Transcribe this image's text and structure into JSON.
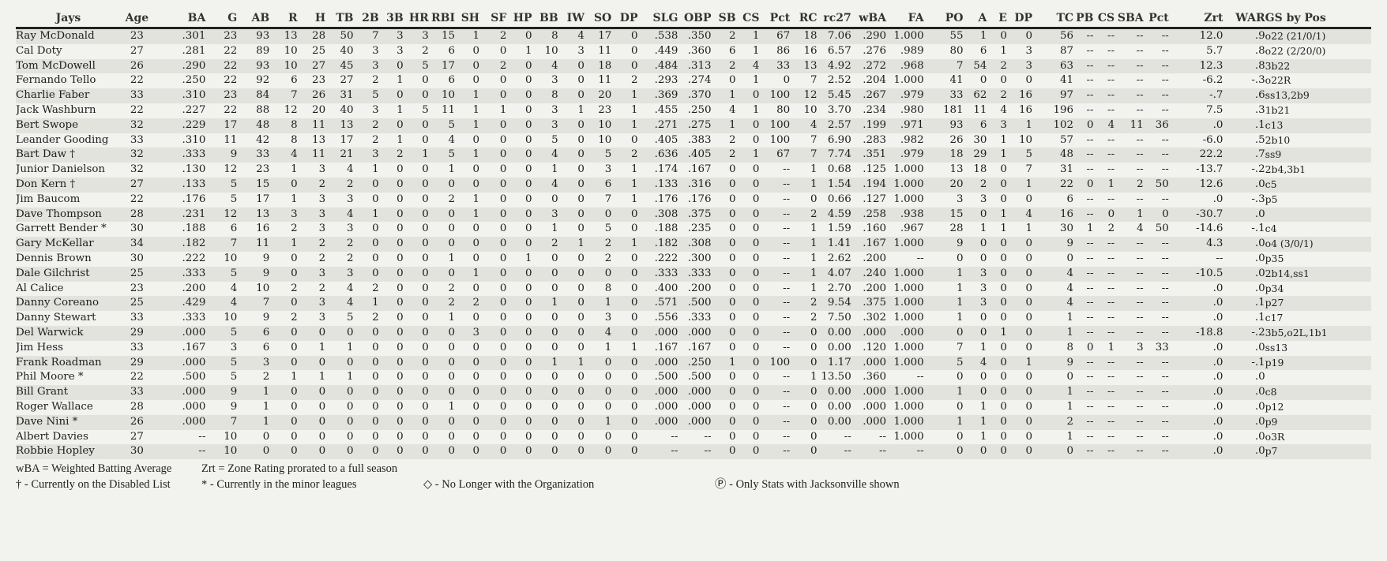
{
  "table": {
    "team_label": "Jays",
    "columns": [
      "Jays",
      "Age",
      "BA",
      "G",
      "AB",
      "R",
      "H",
      "TB",
      "2B",
      "3B",
      "HR",
      "RBI",
      "SH",
      "SF",
      "HP",
      "BB",
      "IW",
      "SO",
      "DP",
      "SLG",
      "OBP",
      "SB",
      "CS",
      "Pct",
      "RC",
      "rc27",
      "wBA",
      "FA",
      "PO",
      "A",
      "E",
      "DP",
      "TC",
      "PB",
      "CS",
      "SBA",
      "Pct",
      "Zrt",
      "WAR",
      "GS by Pos"
    ],
    "rows": [
      [
        "Ray McDonald",
        "23",
        ".301",
        "23",
        "93",
        "13",
        "28",
        "50",
        "7",
        "3",
        "3",
        "15",
        "1",
        "2",
        "0",
        "8",
        "4",
        "17",
        "0",
        ".538",
        ".350",
        "2",
        "1",
        "67",
        "18",
        "7.06",
        ".290",
        "1.000",
        "55",
        "1",
        "0",
        "0",
        "56",
        "--",
        "--",
        "--",
        "--",
        "12.0",
        ".9",
        "o22 (21/0/1)"
      ],
      [
        "Cal Doty",
        "27",
        ".281",
        "22",
        "89",
        "10",
        "25",
        "40",
        "3",
        "3",
        "2",
        "6",
        "0",
        "0",
        "1",
        "10",
        "3",
        "11",
        "0",
        ".449",
        ".360",
        "6",
        "1",
        "86",
        "16",
        "6.57",
        ".276",
        ".989",
        "80",
        "6",
        "1",
        "3",
        "87",
        "--",
        "--",
        "--",
        "--",
        "5.7",
        ".8",
        "o22 (2/20/0)"
      ],
      [
        "Tom McDowell",
        "26",
        ".290",
        "22",
        "93",
        "10",
        "27",
        "45",
        "3",
        "0",
        "5",
        "17",
        "0",
        "2",
        "0",
        "4",
        "0",
        "18",
        "0",
        ".484",
        ".313",
        "2",
        "4",
        "33",
        "13",
        "4.92",
        ".272",
        ".968",
        "7",
        "54",
        "2",
        "3",
        "63",
        "--",
        "--",
        "--",
        "--",
        "12.3",
        ".8",
        "3b22"
      ],
      [
        "Fernando Tello",
        "22",
        ".250",
        "22",
        "92",
        "6",
        "23",
        "27",
        "2",
        "1",
        "0",
        "6",
        "0",
        "0",
        "0",
        "3",
        "0",
        "11",
        "2",
        ".293",
        ".274",
        "0",
        "1",
        "0",
        "7",
        "2.52",
        ".204",
        "1.000",
        "41",
        "0",
        "0",
        "0",
        "41",
        "--",
        "--",
        "--",
        "--",
        "-6.2",
        "-.3",
        "o22R"
      ],
      [
        "Charlie Faber",
        "33",
        ".310",
        "23",
        "84",
        "7",
        "26",
        "31",
        "5",
        "0",
        "0",
        "10",
        "1",
        "0",
        "0",
        "8",
        "0",
        "20",
        "1",
        ".369",
        ".370",
        "1",
        "0",
        "100",
        "12",
        "5.45",
        ".267",
        ".979",
        "33",
        "62",
        "2",
        "16",
        "97",
        "--",
        "--",
        "--",
        "--",
        "-.7",
        ".6",
        "ss13,2b9"
      ],
      [
        "Jack Washburn",
        "22",
        ".227",
        "22",
        "88",
        "12",
        "20",
        "40",
        "3",
        "1",
        "5",
        "11",
        "1",
        "1",
        "0",
        "3",
        "1",
        "23",
        "1",
        ".455",
        ".250",
        "4",
        "1",
        "80",
        "10",
        "3.70",
        ".234",
        ".980",
        "181",
        "11",
        "4",
        "16",
        "196",
        "--",
        "--",
        "--",
        "--",
        "7.5",
        ".3",
        "1b21"
      ],
      [
        "Bert Swope",
        "32",
        ".229",
        "17",
        "48",
        "8",
        "11",
        "13",
        "2",
        "0",
        "0",
        "5",
        "1",
        "0",
        "0",
        "3",
        "0",
        "10",
        "1",
        ".271",
        ".275",
        "1",
        "0",
        "100",
        "4",
        "2.57",
        ".199",
        ".971",
        "93",
        "6",
        "3",
        "1",
        "102",
        "0",
        "4",
        "11",
        "36",
        ".0",
        ".1",
        "c13"
      ],
      [
        "Leander Gooding",
        "33",
        ".310",
        "11",
        "42",
        "8",
        "13",
        "17",
        "2",
        "1",
        "0",
        "4",
        "0",
        "0",
        "0",
        "5",
        "0",
        "10",
        "0",
        ".405",
        ".383",
        "2",
        "0",
        "100",
        "7",
        "6.90",
        ".283",
        ".982",
        "26",
        "30",
        "1",
        "10",
        "57",
        "--",
        "--",
        "--",
        "--",
        "-6.0",
        ".5",
        "2b10"
      ],
      [
        "Bart Daw †",
        "32",
        ".333",
        "9",
        "33",
        "4",
        "11",
        "21",
        "3",
        "2",
        "1",
        "5",
        "1",
        "0",
        "0",
        "4",
        "0",
        "5",
        "2",
        ".636",
        ".405",
        "2",
        "1",
        "67",
        "7",
        "7.74",
        ".351",
        ".979",
        "18",
        "29",
        "1",
        "5",
        "48",
        "--",
        "--",
        "--",
        "--",
        "22.2",
        ".7",
        "ss9"
      ],
      [
        "Junior Danielson",
        "32",
        ".130",
        "12",
        "23",
        "1",
        "3",
        "4",
        "1",
        "0",
        "0",
        "1",
        "0",
        "0",
        "0",
        "1",
        "0",
        "3",
        "1",
        ".174",
        ".167",
        "0",
        "0",
        "--",
        "1",
        "0.68",
        ".125",
        "1.000",
        "13",
        "18",
        "0",
        "7",
        "31",
        "--",
        "--",
        "--",
        "--",
        "-13.7",
        "-.2",
        "2b4,3b1"
      ],
      [
        "Don Kern †",
        "27",
        ".133",
        "5",
        "15",
        "0",
        "2",
        "2",
        "0",
        "0",
        "0",
        "0",
        "0",
        "0",
        "0",
        "4",
        "0",
        "6",
        "1",
        ".133",
        ".316",
        "0",
        "0",
        "--",
        "1",
        "1.54",
        ".194",
        "1.000",
        "20",
        "2",
        "0",
        "1",
        "22",
        "0",
        "1",
        "2",
        "50",
        "12.6",
        ".0",
        "c5"
      ],
      [
        "Jim Baucom",
        "22",
        ".176",
        "5",
        "17",
        "1",
        "3",
        "3",
        "0",
        "0",
        "0",
        "2",
        "1",
        "0",
        "0",
        "0",
        "0",
        "7",
        "1",
        ".176",
        ".176",
        "0",
        "0",
        "--",
        "0",
        "0.66",
        ".127",
        "1.000",
        "3",
        "3",
        "0",
        "0",
        "6",
        "--",
        "--",
        "--",
        "--",
        ".0",
        "-.3",
        "p5"
      ],
      [
        "Dave Thompson",
        "28",
        ".231",
        "12",
        "13",
        "3",
        "3",
        "4",
        "1",
        "0",
        "0",
        "0",
        "1",
        "0",
        "0",
        "3",
        "0",
        "0",
        "0",
        ".308",
        ".375",
        "0",
        "0",
        "--",
        "2",
        "4.59",
        ".258",
        ".938",
        "15",
        "0",
        "1",
        "4",
        "16",
        "--",
        "0",
        "1",
        "0",
        "-30.7",
        ".0",
        ""
      ],
      [
        "Garrett Bender *",
        "30",
        ".188",
        "6",
        "16",
        "2",
        "3",
        "3",
        "0",
        "0",
        "0",
        "0",
        "0",
        "0",
        "0",
        "1",
        "0",
        "5",
        "0",
        ".188",
        ".235",
        "0",
        "0",
        "--",
        "1",
        "1.59",
        ".160",
        ".967",
        "28",
        "1",
        "1",
        "1",
        "30",
        "1",
        "2",
        "4",
        "50",
        "-14.6",
        "-.1",
        "c4"
      ],
      [
        "Gary McKellar",
        "34",
        ".182",
        "7",
        "11",
        "1",
        "2",
        "2",
        "0",
        "0",
        "0",
        "0",
        "0",
        "0",
        "0",
        "2",
        "1",
        "2",
        "1",
        ".182",
        ".308",
        "0",
        "0",
        "--",
        "1",
        "1.41",
        ".167",
        "1.000",
        "9",
        "0",
        "0",
        "0",
        "9",
        "--",
        "--",
        "--",
        "--",
        "4.3",
        ".0",
        "o4 (3/0/1)"
      ],
      [
        "Dennis Brown",
        "30",
        ".222",
        "10",
        "9",
        "0",
        "2",
        "2",
        "0",
        "0",
        "0",
        "1",
        "0",
        "0",
        "1",
        "0",
        "0",
        "2",
        "0",
        ".222",
        ".300",
        "0",
        "0",
        "--",
        "1",
        "2.62",
        ".200",
        "--",
        "0",
        "0",
        "0",
        "0",
        "0",
        "--",
        "--",
        "--",
        "--",
        "--",
        ".0",
        "p35"
      ],
      [
        "Dale Gilchrist",
        "25",
        ".333",
        "5",
        "9",
        "0",
        "3",
        "3",
        "0",
        "0",
        "0",
        "0",
        "1",
        "0",
        "0",
        "0",
        "0",
        "0",
        "0",
        ".333",
        ".333",
        "0",
        "0",
        "--",
        "1",
        "4.07",
        ".240",
        "1.000",
        "1",
        "3",
        "0",
        "0",
        "4",
        "--",
        "--",
        "--",
        "--",
        "-10.5",
        ".0",
        "2b14,ss1"
      ],
      [
        "Al Calice",
        "23",
        ".200",
        "4",
        "10",
        "2",
        "2",
        "4",
        "2",
        "0",
        "0",
        "2",
        "0",
        "0",
        "0",
        "0",
        "0",
        "8",
        "0",
        ".400",
        ".200",
        "0",
        "0",
        "--",
        "1",
        "2.70",
        ".200",
        "1.000",
        "1",
        "3",
        "0",
        "0",
        "4",
        "--",
        "--",
        "--",
        "--",
        ".0",
        ".0",
        "p34"
      ],
      [
        "Danny Coreano",
        "25",
        ".429",
        "4",
        "7",
        "0",
        "3",
        "4",
        "1",
        "0",
        "0",
        "2",
        "2",
        "0",
        "0",
        "1",
        "0",
        "1",
        "0",
        ".571",
        ".500",
        "0",
        "0",
        "--",
        "2",
        "9.54",
        ".375",
        "1.000",
        "1",
        "3",
        "0",
        "0",
        "4",
        "--",
        "--",
        "--",
        "--",
        ".0",
        ".1",
        "p27"
      ],
      [
        "Danny Stewart",
        "33",
        ".333",
        "10",
        "9",
        "2",
        "3",
        "5",
        "2",
        "0",
        "0",
        "1",
        "0",
        "0",
        "0",
        "0",
        "0",
        "3",
        "0",
        ".556",
        ".333",
        "0",
        "0",
        "--",
        "2",
        "7.50",
        ".302",
        "1.000",
        "1",
        "0",
        "0",
        "0",
        "1",
        "--",
        "--",
        "--",
        "--",
        ".0",
        ".1",
        "c17"
      ],
      [
        "Del Warwick",
        "29",
        ".000",
        "5",
        "6",
        "0",
        "0",
        "0",
        "0",
        "0",
        "0",
        "0",
        "3",
        "0",
        "0",
        "0",
        "0",
        "4",
        "0",
        ".000",
        ".000",
        "0",
        "0",
        "--",
        "0",
        "0.00",
        ".000",
        ".000",
        "0",
        "0",
        "1",
        "0",
        "1",
        "--",
        "--",
        "--",
        "--",
        "-18.8",
        "-.2",
        "3b5,o2L,1b1"
      ],
      [
        "Jim Hess",
        "33",
        ".167",
        "3",
        "6",
        "0",
        "1",
        "1",
        "0",
        "0",
        "0",
        "0",
        "0",
        "0",
        "0",
        "0",
        "0",
        "1",
        "1",
        ".167",
        ".167",
        "0",
        "0",
        "--",
        "0",
        "0.00",
        ".120",
        "1.000",
        "7",
        "1",
        "0",
        "0",
        "8",
        "0",
        "1",
        "3",
        "33",
        ".0",
        ".0",
        "ss13"
      ],
      [
        "Frank Roadman",
        "29",
        ".000",
        "5",
        "3",
        "0",
        "0",
        "0",
        "0",
        "0",
        "0",
        "0",
        "0",
        "0",
        "0",
        "1",
        "1",
        "0",
        "0",
        ".000",
        ".250",
        "1",
        "0",
        "100",
        "0",
        "1.17",
        ".000",
        "1.000",
        "5",
        "4",
        "0",
        "1",
        "9",
        "--",
        "--",
        "--",
        "--",
        ".0",
        "-.1",
        "p19"
      ],
      [
        "Phil Moore *",
        "22",
        ".500",
        "5",
        "2",
        "1",
        "1",
        "1",
        "0",
        "0",
        "0",
        "0",
        "0",
        "0",
        "0",
        "0",
        "0",
        "0",
        "0",
        ".500",
        ".500",
        "0",
        "0",
        "--",
        "1",
        "13.50",
        ".360",
        "--",
        "0",
        "0",
        "0",
        "0",
        "0",
        "--",
        "--",
        "--",
        "--",
        ".0",
        ".0",
        ""
      ],
      [
        "Bill Grant",
        "33",
        ".000",
        "9",
        "1",
        "0",
        "0",
        "0",
        "0",
        "0",
        "0",
        "0",
        "0",
        "0",
        "0",
        "0",
        "0",
        "0",
        "0",
        ".000",
        ".000",
        "0",
        "0",
        "--",
        "0",
        "0.00",
        ".000",
        "1.000",
        "1",
        "0",
        "0",
        "0",
        "1",
        "--",
        "--",
        "--",
        "--",
        ".0",
        ".0",
        "c8"
      ],
      [
        "Roger Wallace",
        "28",
        ".000",
        "9",
        "1",
        "0",
        "0",
        "0",
        "0",
        "0",
        "0",
        "1",
        "0",
        "0",
        "0",
        "0",
        "0",
        "0",
        "0",
        ".000",
        ".000",
        "0",
        "0",
        "--",
        "0",
        "0.00",
        ".000",
        "1.000",
        "0",
        "1",
        "0",
        "0",
        "1",
        "--",
        "--",
        "--",
        "--",
        ".0",
        ".0",
        "p12"
      ],
      [
        "Dave Nini *",
        "26",
        ".000",
        "7",
        "1",
        "0",
        "0",
        "0",
        "0",
        "0",
        "0",
        "0",
        "0",
        "0",
        "0",
        "0",
        "0",
        "1",
        "0",
        ".000",
        ".000",
        "0",
        "0",
        "--",
        "0",
        "0.00",
        ".000",
        "1.000",
        "1",
        "1",
        "0",
        "0",
        "2",
        "--",
        "--",
        "--",
        "--",
        ".0",
        ".0",
        "p9"
      ],
      [
        "Albert Davies",
        "27",
        "--",
        "10",
        "0",
        "0",
        "0",
        "0",
        "0",
        "0",
        "0",
        "0",
        "0",
        "0",
        "0",
        "0",
        "0",
        "0",
        "0",
        "--",
        "--",
        "0",
        "0",
        "--",
        "0",
        "--",
        "--",
        "1.000",
        "0",
        "1",
        "0",
        "0",
        "1",
        "--",
        "--",
        "--",
        "--",
        ".0",
        ".0",
        "o3R"
      ],
      [
        "Robbie Hopley",
        "30",
        "--",
        "10",
        "0",
        "0",
        "0",
        "0",
        "0",
        "0",
        "0",
        "0",
        "0",
        "0",
        "0",
        "0",
        "0",
        "0",
        "0",
        "--",
        "--",
        "0",
        "0",
        "--",
        "0",
        "--",
        "--",
        "--",
        "0",
        "0",
        "0",
        "0",
        "0",
        "--",
        "--",
        "--",
        "--",
        ".0",
        ".0",
        "p7"
      ]
    ]
  },
  "legend": {
    "wba": "wBA = Weighted Batting Average",
    "zrt": "Zrt = Zone Rating prorated to a full season",
    "dl": "† - Currently on the Disabled List",
    "minors": "* - Currently in the minor leagues",
    "no_longer": "◇ - No Longer with the Organization",
    "only_stats": "Ⓟ - Only Stats with Jacksonville shown"
  },
  "colors": {
    "background": "#f2f2ee",
    "row_stripe": "#e3e3de",
    "header_rule": "#222222"
  }
}
